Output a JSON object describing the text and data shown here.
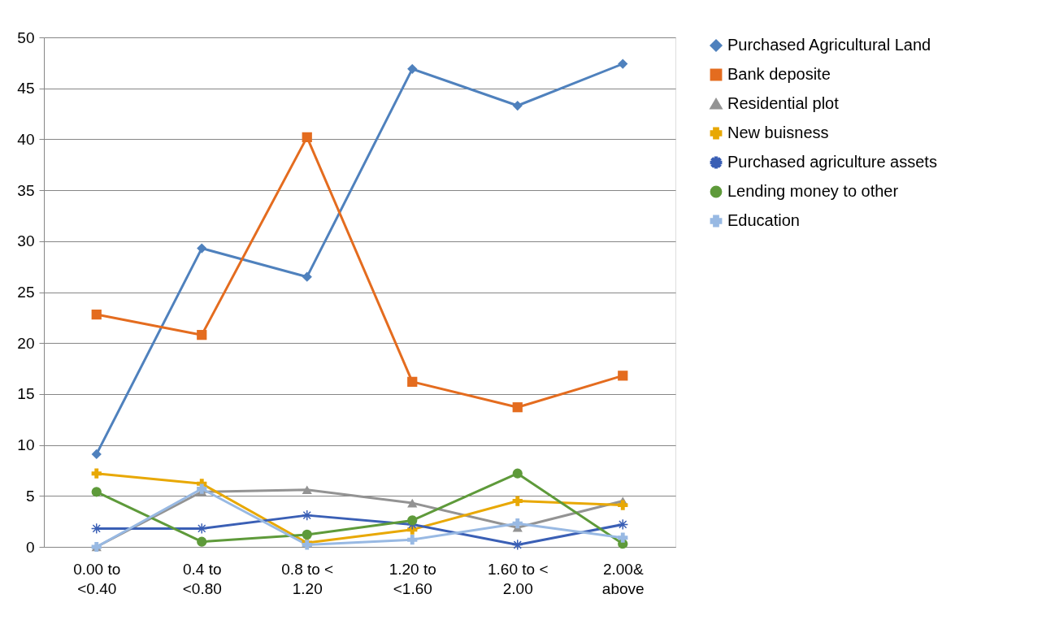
{
  "chart_data": {
    "type": "line",
    "categories": [
      "0.00 to <0.40",
      "0.4  to <0.80",
      "0.8 to < 1.20",
      "1.20 to <1.60",
      "1.60  to < 2.00",
      "2.00& above"
    ],
    "series": [
      {
        "name": "Purchased Agricultural Land",
        "color": "#4f81bd",
        "marker": "diamond",
        "values": [
          9.1,
          29.3,
          26.5,
          46.9,
          43.3,
          47.4
        ]
      },
      {
        "name": "Bank deposite",
        "color": "#e46c1f",
        "marker": "square",
        "values": [
          22.8,
          20.8,
          40.2,
          16.2,
          13.7,
          16.8
        ]
      },
      {
        "name": "Residential plot",
        "color": "#939393",
        "marker": "triangle",
        "values": [
          0,
          5.4,
          5.6,
          4.3,
          1.9,
          4.5
        ]
      },
      {
        "name": "New buisness",
        "color": "#e8a804",
        "marker": "cross",
        "values": [
          7.2,
          6.2,
          0.4,
          1.7,
          4.5,
          4.1
        ]
      },
      {
        "name": "Purchased agriculture assets",
        "color": "#3a5fb5",
        "marker": "star",
        "values": [
          1.8,
          1.8,
          3.1,
          2.2,
          0.2,
          2.2
        ]
      },
      {
        "name": "Lending money to other",
        "color": "#5e9a3a",
        "marker": "circle",
        "values": [
          5.4,
          0.5,
          1.2,
          2.6,
          7.2,
          0.3
        ]
      },
      {
        "name": "Education",
        "color": "#98b9e3",
        "marker": "cross",
        "values": [
          0,
          5.7,
          0.2,
          0.7,
          2.3,
          0.9
        ]
      }
    ],
    "ylim": [
      0,
      50
    ],
    "yticks": [
      0,
      5,
      10,
      15,
      20,
      25,
      30,
      35,
      40,
      45,
      50
    ],
    "grid": "y",
    "legend": "right",
    "line_style": "solid"
  }
}
